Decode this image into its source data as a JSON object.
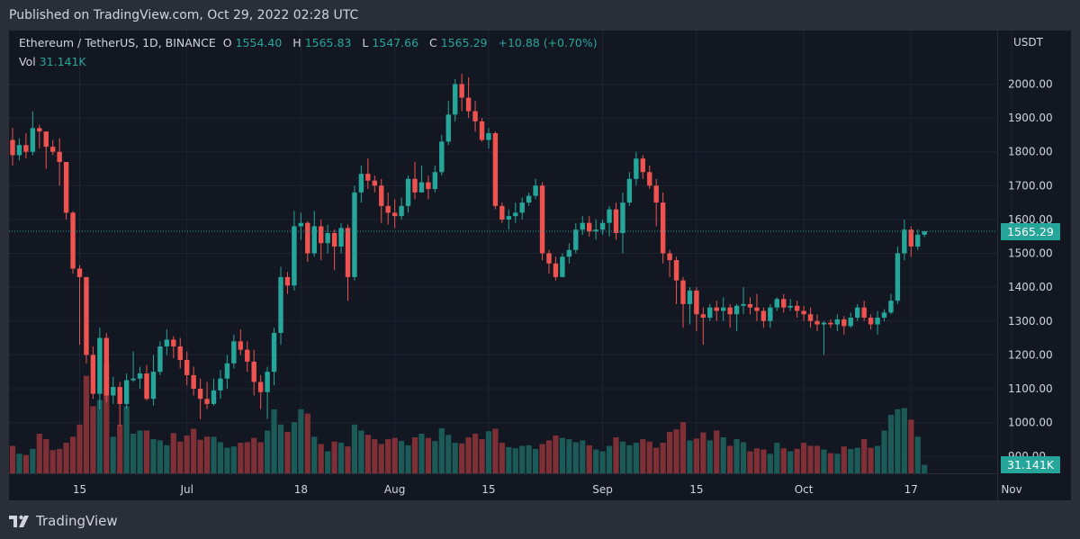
{
  "header": {
    "published": "Published on TradingView.com, Oct 29, 2022 02:28 UTC"
  },
  "legend": {
    "symbol": "Ethereum / TetherUS, 1D, BINANCE",
    "o_label": "O",
    "o_value": "1554.40",
    "h_label": "H",
    "h_value": "1565.83",
    "l_label": "L",
    "l_value": "1547.66",
    "c_label": "C",
    "c_value": "1565.29",
    "change": "+10.88 (+0.70%)",
    "vol_label": "Vol",
    "vol_value": "31.141K"
  },
  "footer": {
    "brand": "TradingView"
  },
  "colors": {
    "up": "#26a69a",
    "down": "#ef5350",
    "up_vol": "#1b5a57",
    "down_vol": "#7e3036",
    "background": "#131722",
    "text": "#d1d4dc",
    "grid": "#1f2330"
  },
  "chart_data": {
    "type": "candlestick",
    "quote_currency": "USDT",
    "y_ticks": [
      "900.00",
      "1000.00",
      "1100.00",
      "1200.00",
      "1300.00",
      "1400.00",
      "1500.00",
      "1600.00",
      "1700.00",
      "1800.00",
      "1900.00",
      "2000.00"
    ],
    "ylim": [
      850,
      2105
    ],
    "last_price": "1565.29",
    "last_volume": "31.141K",
    "x_ticks": [
      {
        "label": "15",
        "index": 10
      },
      {
        "label": "Jul",
        "index": 26
      },
      {
        "label": "18",
        "index": 43
      },
      {
        "label": "Aug",
        "index": 57
      },
      {
        "label": "15",
        "index": 71
      },
      {
        "label": "Sep",
        "index": 88
      },
      {
        "label": "15",
        "index": 102
      },
      {
        "label": "Oct",
        "index": 118
      },
      {
        "label": "17",
        "index": 134
      },
      {
        "label": "Nov",
        "index": 149
      }
    ],
    "candles": [
      [
        1835,
        1790,
        1870,
        1760,
        450
      ],
      [
        1790,
        1820,
        1840,
        1775,
        320
      ],
      [
        1820,
        1800,
        1855,
        1780,
        300
      ],
      [
        1800,
        1870,
        1920,
        1790,
        400
      ],
      [
        1870,
        1860,
        1880,
        1810,
        650
      ],
      [
        1860,
        1815,
        1860,
        1750,
        560
      ],
      [
        1815,
        1800,
        1835,
        1790,
        380
      ],
      [
        1800,
        1770,
        1840,
        1700,
        400
      ],
      [
        1770,
        1620,
        1770,
        1600,
        500
      ],
      [
        1620,
        1455,
        1625,
        1440,
        600
      ],
      [
        1455,
        1430,
        1465,
        1230,
        800
      ],
      [
        1430,
        1200,
        1430,
        1175,
        1600
      ],
      [
        1200,
        1085,
        1225,
        1070,
        1100
      ],
      [
        1085,
        1250,
        1280,
        1040,
        1200
      ],
      [
        1250,
        1080,
        1265,
        1060,
        1800
      ],
      [
        1080,
        1105,
        1135,
        1055,
        600
      ],
      [
        1105,
        1055,
        1120,
        990,
        800
      ],
      [
        1055,
        1125,
        1145,
        1040,
        1100
      ],
      [
        1125,
        1130,
        1210,
        1120,
        650
      ],
      [
        1130,
        1145,
        1165,
        1100,
        700
      ],
      [
        1145,
        1070,
        1170,
        1065,
        700
      ],
      [
        1070,
        1150,
        1200,
        1050,
        560
      ],
      [
        1150,
        1225,
        1240,
        1140,
        540
      ],
      [
        1225,
        1245,
        1275,
        1200,
        460
      ],
      [
        1245,
        1225,
        1255,
        1190,
        660
      ],
      [
        1225,
        1185,
        1250,
        1160,
        520
      ],
      [
        1185,
        1140,
        1210,
        1110,
        620
      ],
      [
        1140,
        1100,
        1165,
        1080,
        730
      ],
      [
        1100,
        1070,
        1130,
        1010,
        550
      ],
      [
        1070,
        1055,
        1120,
        1040,
        600
      ],
      [
        1055,
        1095,
        1130,
        1050,
        600
      ],
      [
        1095,
        1130,
        1155,
        1070,
        510
      ],
      [
        1130,
        1175,
        1200,
        1100,
        420
      ],
      [
        1175,
        1240,
        1260,
        1160,
        440
      ],
      [
        1240,
        1215,
        1275,
        1200,
        500
      ],
      [
        1215,
        1180,
        1240,
        1150,
        510
      ],
      [
        1180,
        1120,
        1215,
        1080,
        580
      ],
      [
        1120,
        1090,
        1140,
        1040,
        510
      ],
      [
        1090,
        1150,
        1165,
        1010,
        700
      ],
      [
        1150,
        1265,
        1280,
        1110,
        1050
      ],
      [
        1265,
        1430,
        1460,
        1230,
        800
      ],
      [
        1430,
        1405,
        1445,
        1380,
        680
      ],
      [
        1405,
        1580,
        1625,
        1390,
        840
      ],
      [
        1580,
        1590,
        1620,
        1540,
        1050
      ],
      [
        1590,
        1500,
        1595,
        1475,
        980
      ],
      [
        1500,
        1580,
        1625,
        1490,
        600
      ],
      [
        1580,
        1530,
        1600,
        1480,
        480
      ],
      [
        1530,
        1560,
        1585,
        1500,
        360
      ],
      [
        1560,
        1520,
        1570,
        1450,
        520
      ],
      [
        1520,
        1575,
        1590,
        1500,
        500
      ],
      [
        1575,
        1430,
        1585,
        1360,
        440
      ],
      [
        1430,
        1680,
        1700,
        1420,
        800
      ],
      [
        1680,
        1735,
        1760,
        1650,
        700
      ],
      [
        1735,
        1715,
        1780,
        1690,
        630
      ],
      [
        1715,
        1700,
        1730,
        1680,
        560
      ],
      [
        1700,
        1640,
        1720,
        1590,
        480
      ],
      [
        1640,
        1620,
        1680,
        1585,
        560
      ],
      [
        1620,
        1610,
        1660,
        1575,
        580
      ],
      [
        1610,
        1640,
        1665,
        1600,
        530
      ],
      [
        1640,
        1720,
        1730,
        1620,
        460
      ],
      [
        1720,
        1680,
        1770,
        1660,
        590
      ],
      [
        1680,
        1710,
        1760,
        1680,
        650
      ],
      [
        1710,
        1690,
        1730,
        1660,
        580
      ],
      [
        1690,
        1740,
        1760,
        1680,
        530
      ],
      [
        1740,
        1830,
        1850,
        1730,
        740
      ],
      [
        1830,
        1910,
        1950,
        1820,
        630
      ],
      [
        1910,
        2000,
        2015,
        1890,
        500
      ],
      [
        2000,
        1960,
        2030,
        1920,
        490
      ],
      [
        1960,
        1920,
        2020,
        1900,
        590
      ],
      [
        1920,
        1890,
        1950,
        1860,
        650
      ],
      [
        1890,
        1835,
        1900,
        1830,
        560
      ],
      [
        1835,
        1855,
        1870,
        1810,
        690
      ],
      [
        1855,
        1640,
        1860,
        1630,
        730
      ],
      [
        1640,
        1600,
        1650,
        1590,
        500
      ],
      [
        1600,
        1610,
        1630,
        1570,
        430
      ],
      [
        1610,
        1620,
        1650,
        1590,
        410
      ],
      [
        1620,
        1650,
        1665,
        1600,
        450
      ],
      [
        1650,
        1670,
        1680,
        1640,
        460
      ],
      [
        1670,
        1700,
        1720,
        1660,
        400
      ],
      [
        1700,
        1500,
        1710,
        1480,
        480
      ],
      [
        1500,
        1470,
        1510,
        1440,
        540
      ],
      [
        1470,
        1430,
        1490,
        1420,
        620
      ],
      [
        1430,
        1490,
        1500,
        1430,
        580
      ],
      [
        1490,
        1510,
        1530,
        1470,
        560
      ],
      [
        1510,
        1570,
        1590,
        1500,
        510
      ],
      [
        1570,
        1590,
        1610,
        1555,
        540
      ],
      [
        1590,
        1565,
        1610,
        1550,
        460
      ],
      [
        1565,
        1570,
        1600,
        1540,
        390
      ],
      [
        1570,
        1590,
        1600,
        1555,
        360
      ],
      [
        1590,
        1630,
        1640,
        1550,
        450
      ],
      [
        1630,
        1560,
        1650,
        1540,
        590
      ],
      [
        1560,
        1650,
        1680,
        1500,
        520
      ],
      [
        1650,
        1720,
        1740,
        1640,
        460
      ],
      [
        1720,
        1780,
        1800,
        1700,
        500
      ],
      [
        1780,
        1740,
        1790,
        1720,
        560
      ],
      [
        1740,
        1700,
        1760,
        1690,
        520
      ],
      [
        1700,
        1650,
        1720,
        1580,
        420
      ],
      [
        1650,
        1500,
        1680,
        1470,
        500
      ],
      [
        1500,
        1480,
        1510,
        1430,
        680
      ],
      [
        1480,
        1420,
        1490,
        1350,
        720
      ],
      [
        1420,
        1350,
        1430,
        1280,
        840
      ],
      [
        1350,
        1390,
        1400,
        1290,
        540
      ],
      [
        1390,
        1320,
        1400,
        1270,
        570
      ],
      [
        1320,
        1310,
        1340,
        1230,
        670
      ],
      [
        1310,
        1340,
        1350,
        1300,
        540
      ],
      [
        1340,
        1330,
        1360,
        1300,
        700
      ],
      [
        1330,
        1340,
        1370,
        1300,
        590
      ],
      [
        1340,
        1320,
        1350,
        1280,
        450
      ],
      [
        1320,
        1345,
        1350,
        1270,
        560
      ],
      [
        1345,
        1350,
        1400,
        1320,
        510
      ],
      [
        1350,
        1340,
        1370,
        1320,
        360
      ],
      [
        1340,
        1330,
        1380,
        1300,
        410
      ],
      [
        1330,
        1300,
        1340,
        1280,
        390
      ],
      [
        1300,
        1340,
        1350,
        1280,
        320
      ],
      [
        1340,
        1365,
        1370,
        1330,
        500
      ],
      [
        1365,
        1340,
        1380,
        1325,
        410
      ],
      [
        1340,
        1345,
        1365,
        1330,
        360
      ],
      [
        1345,
        1330,
        1360,
        1310,
        400
      ],
      [
        1330,
        1320,
        1345,
        1300,
        500
      ],
      [
        1320,
        1300,
        1340,
        1280,
        450
      ],
      [
        1300,
        1290,
        1320,
        1270,
        450
      ],
      [
        1290,
        1295,
        1300,
        1200,
        390
      ],
      [
        1295,
        1290,
        1305,
        1280,
        330
      ],
      [
        1290,
        1305,
        1320,
        1270,
        320
      ],
      [
        1305,
        1285,
        1315,
        1260,
        440
      ],
      [
        1285,
        1310,
        1325,
        1280,
        400
      ],
      [
        1310,
        1340,
        1350,
        1300,
        420
      ],
      [
        1340,
        1310,
        1360,
        1300,
        560
      ],
      [
        1310,
        1290,
        1320,
        1275,
        420
      ],
      [
        1290,
        1310,
        1330,
        1260,
        450
      ],
      [
        1310,
        1325,
        1335,
        1300,
        700
      ],
      [
        1325,
        1360,
        1380,
        1320,
        960
      ],
      [
        1360,
        1500,
        1520,
        1350,
        1050
      ],
      [
        1500,
        1570,
        1600,
        1480,
        1070
      ],
      [
        1570,
        1520,
        1580,
        1490,
        880
      ],
      [
        1520,
        1555,
        1570,
        1510,
        600
      ],
      [
        1555,
        1565,
        1566,
        1548,
        140
      ]
    ]
  }
}
